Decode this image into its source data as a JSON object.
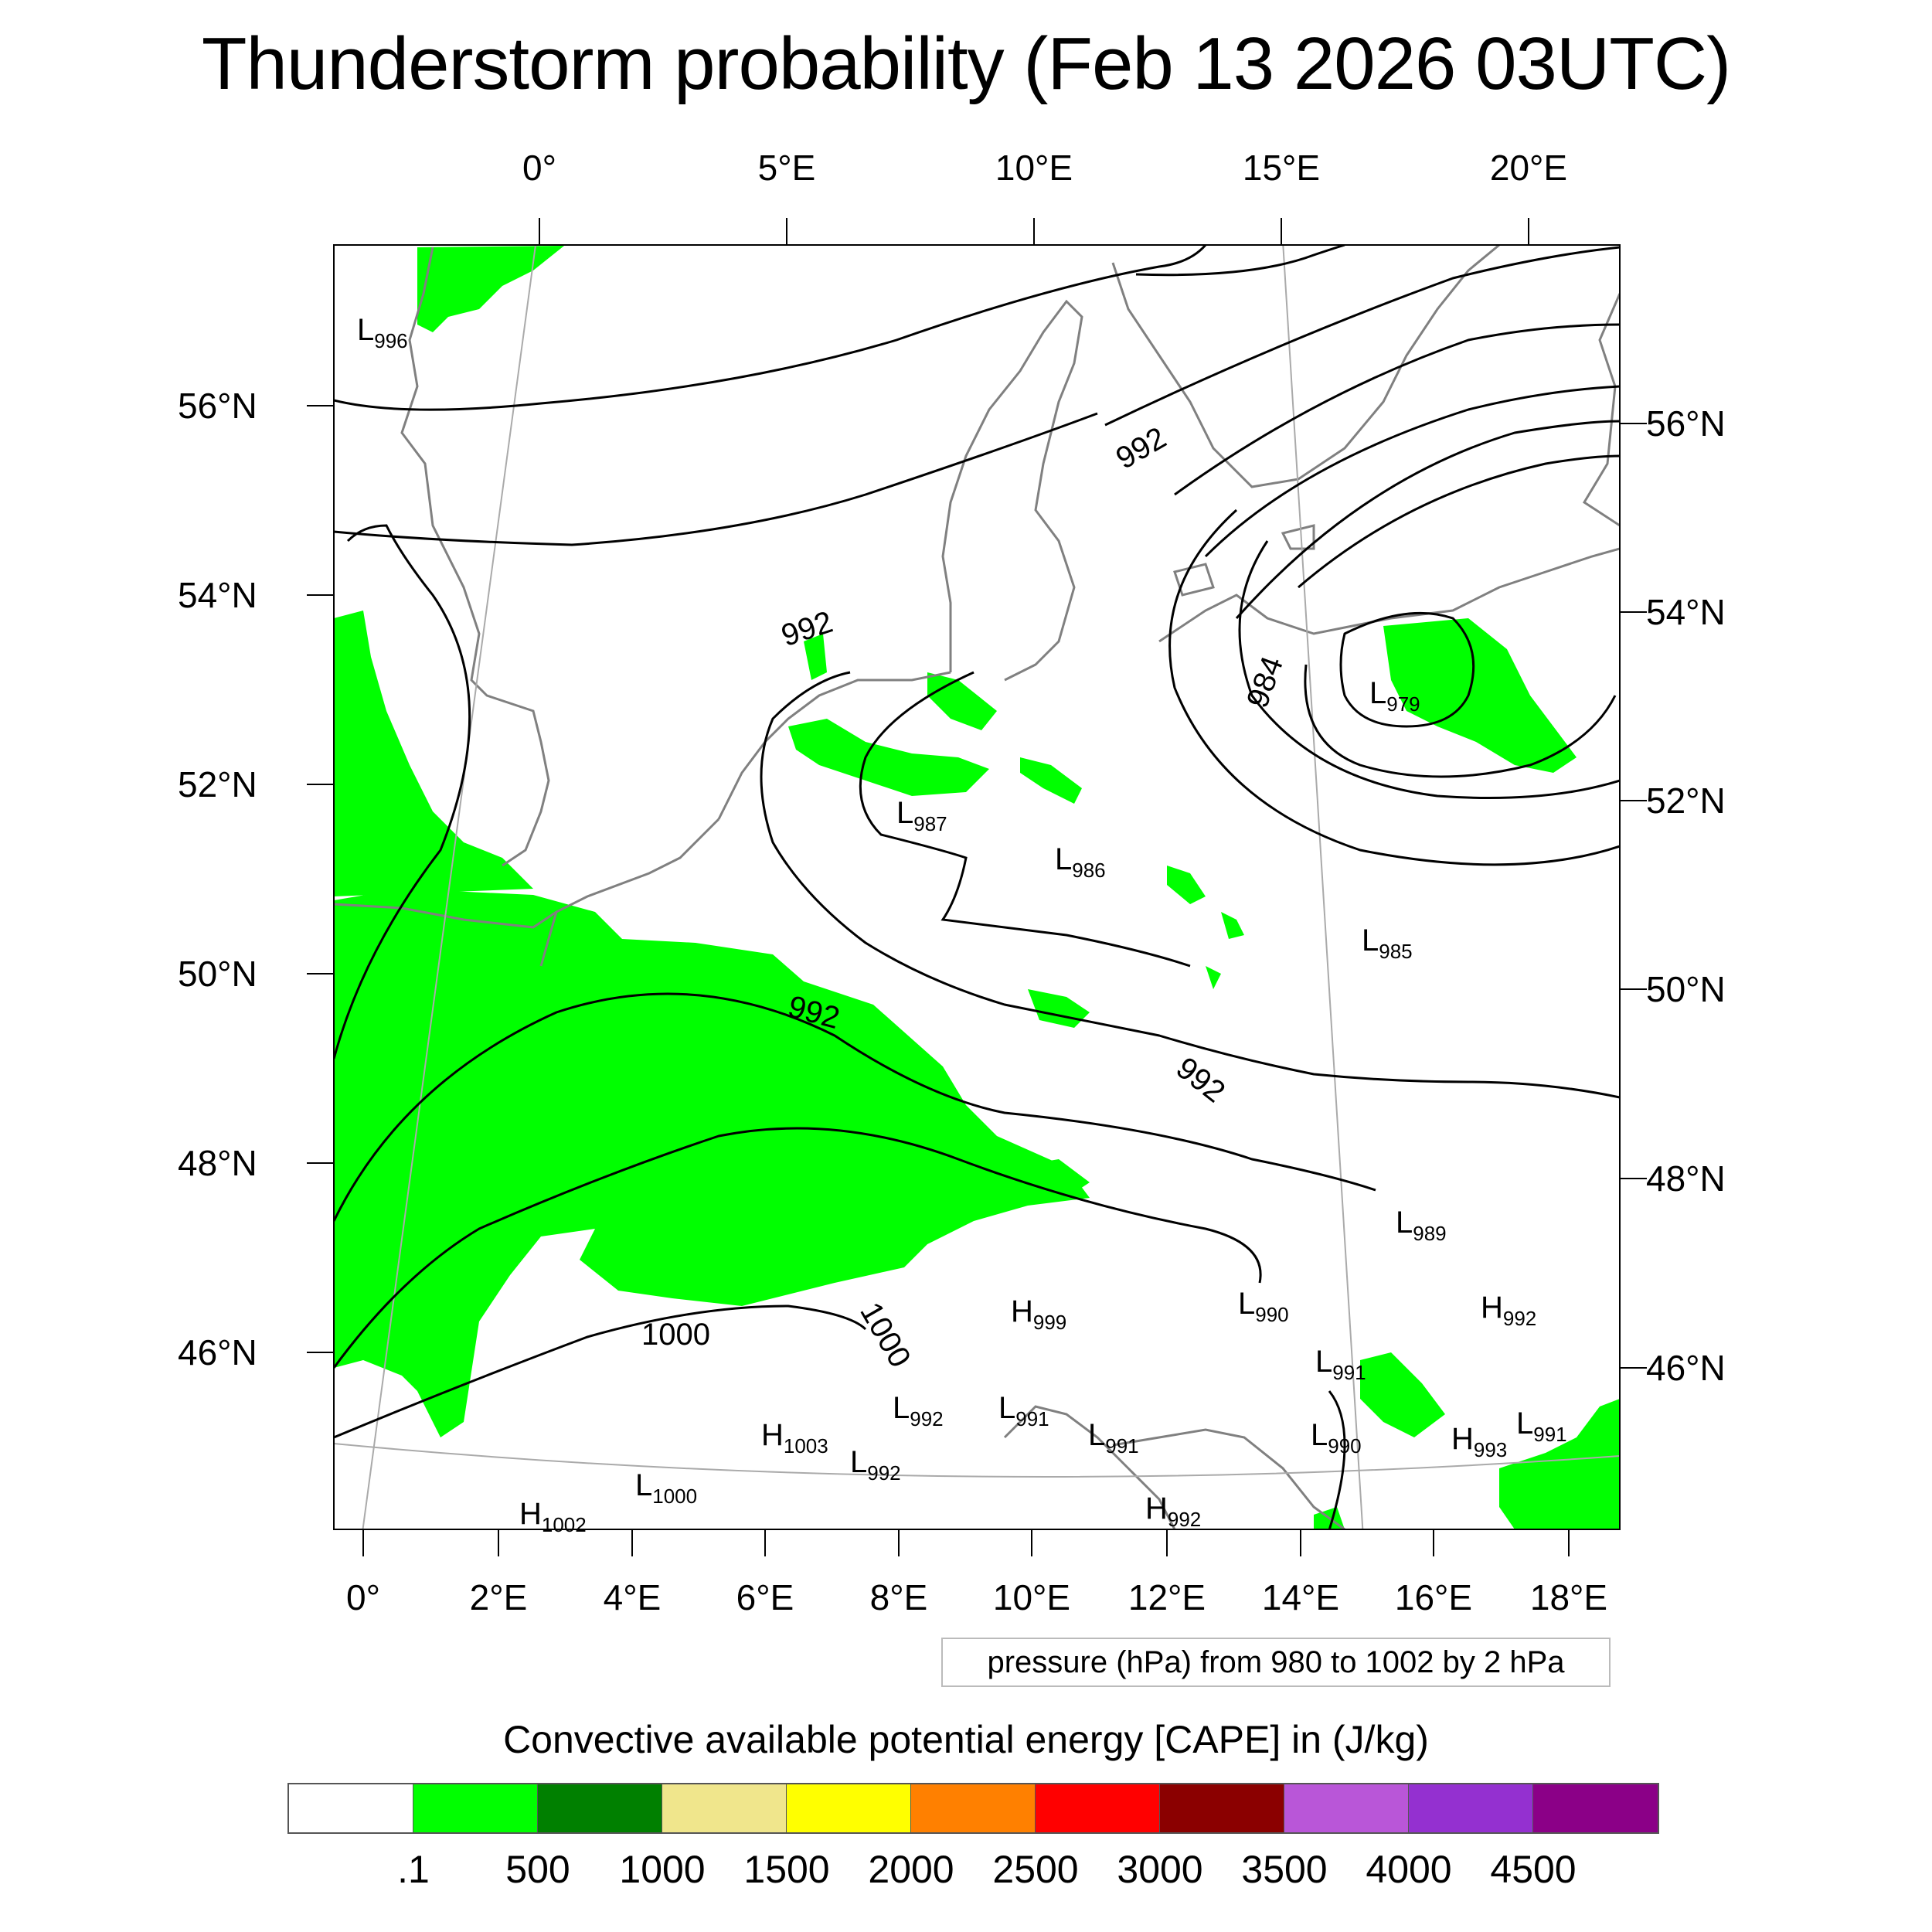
{
  "title": "Thunderstorm probability (Feb 13 2026 03UTC)",
  "top_longitudes": [
    "0°",
    "5°E",
    "10°E",
    "15°E",
    "20°E"
  ],
  "bottom_longitudes": [
    "0°",
    "2°E",
    "4°E",
    "6°E",
    "8°E",
    "10°E",
    "12°E",
    "14°E",
    "16°E",
    "18°E"
  ],
  "left_latitudes": [
    "56°N",
    "54°N",
    "52°N",
    "50°N",
    "48°N",
    "46°N"
  ],
  "right_latitudes": [
    "56°N",
    "54°N",
    "52°N",
    "50°N",
    "48°N",
    "46°N"
  ],
  "contour_labels": [
    "992",
    "992",
    "992",
    "992",
    "984",
    "1000",
    "1000"
  ],
  "pressure_centers": [
    {
      "type": "L",
      "value": "996"
    },
    {
      "type": "L",
      "value": "979"
    },
    {
      "type": "L",
      "value": "987"
    },
    {
      "type": "L",
      "value": "986"
    },
    {
      "type": "L",
      "value": "985"
    },
    {
      "type": "L",
      "value": "989"
    },
    {
      "type": "H",
      "value": "999"
    },
    {
      "type": "L",
      "value": "990"
    },
    {
      "type": "H",
      "value": "992"
    },
    {
      "type": "L",
      "value": "991"
    },
    {
      "type": "L",
      "value": "992"
    },
    {
      "type": "L",
      "value": "991"
    },
    {
      "type": "H",
      "value": "1003"
    },
    {
      "type": "L",
      "value": "991"
    },
    {
      "type": "L",
      "value": "990"
    },
    {
      "type": "H",
      "value": "993"
    },
    {
      "type": "L",
      "value": "991"
    },
    {
      "type": "L",
      "value": "992"
    },
    {
      "type": "L",
      "value": "1000"
    },
    {
      "type": "H",
      "value": "1002"
    },
    {
      "type": "H",
      "value": "992"
    }
  ],
  "pressure_note": "pressure (hPa) from 980 to 1002 by 2 hPa",
  "colorbar": {
    "title": "Convective available potential energy [CAPE] in (J/kg)",
    "labels": [
      ".1",
      "500",
      "1000",
      "1500",
      "2000",
      "2500",
      "3000",
      "3500",
      "4000",
      "4500"
    ],
    "colors": [
      "#ffffff",
      "#00ff00",
      "#008000",
      "#f0e68c",
      "#ffff00",
      "#ff8000",
      "#ff0000",
      "#8b0000",
      "#b956d8",
      "#9430d0",
      "#8b0087"
    ]
  },
  "colors": {
    "cape_fill": "#00ff00",
    "coastline": "#808080",
    "isobar": "#000000",
    "grid": "#aaaaaa"
  }
}
